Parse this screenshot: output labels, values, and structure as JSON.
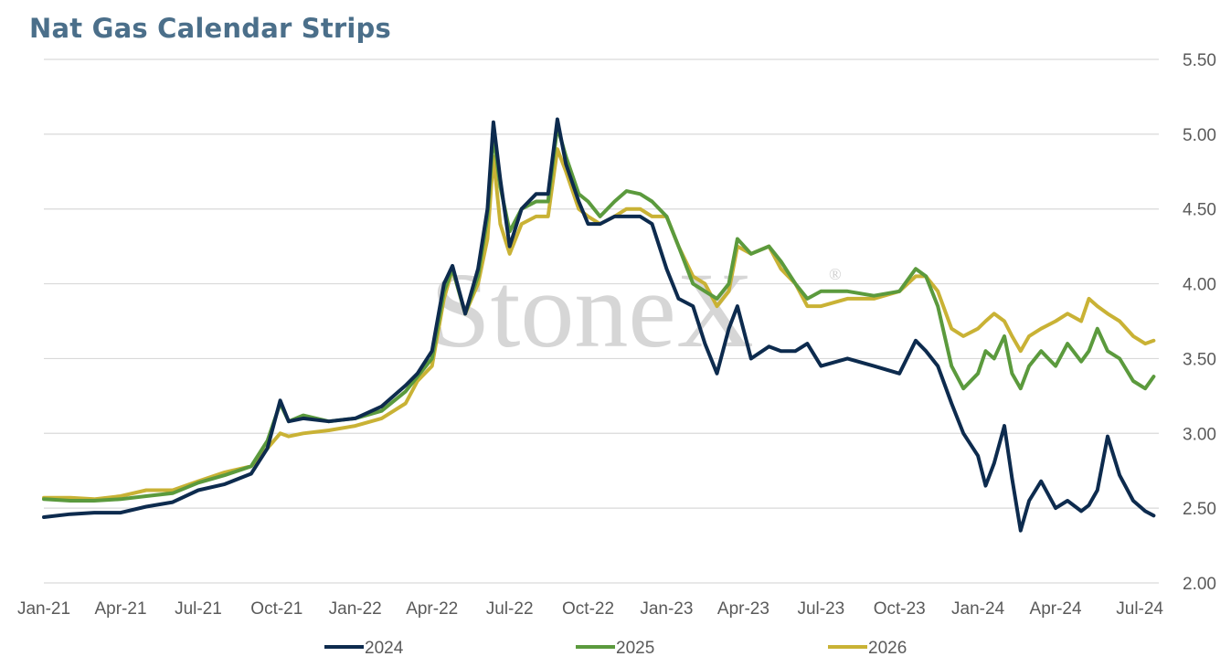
{
  "chart_data": {
    "type": "line",
    "title": "Nat Gas Calendar Strips",
    "watermark": "StoneX",
    "watermark_mark": "®",
    "xlabel": "",
    "ylabel": "",
    "x_ticks": [
      "Jan-21",
      "Apr-21",
      "Jul-21",
      "Oct-21",
      "Jan-22",
      "Apr-22",
      "Jul-22",
      "Oct-22",
      "Jan-23",
      "Apr-23",
      "Jul-23",
      "Oct-23",
      "Jan-24",
      "Apr-24",
      "Jul-24"
    ],
    "x_range": [
      "2021-01-01",
      "2024-07-31"
    ],
    "y_ticks": [
      "2.00",
      "2.50",
      "3.00",
      "3.50",
      "4.00",
      "4.50",
      "5.00",
      "5.50"
    ],
    "ylim": [
      2.0,
      5.5
    ],
    "y_axis_side": "right",
    "grid": "horizontal",
    "legend_position": "bottom",
    "series": [
      {
        "name": "2024",
        "color": "#0d2b4e",
        "x": [
          "2021-01-01",
          "2021-02-01",
          "2021-03-01",
          "2021-04-01",
          "2021-05-01",
          "2021-06-01",
          "2021-07-01",
          "2021-08-01",
          "2021-09-01",
          "2021-09-20",
          "2021-10-05",
          "2021-10-15",
          "2021-11-01",
          "2021-12-01",
          "2022-01-01",
          "2022-02-01",
          "2022-03-01",
          "2022-03-15",
          "2022-04-01",
          "2022-04-15",
          "2022-04-25",
          "2022-05-10",
          "2022-05-25",
          "2022-06-05",
          "2022-06-12",
          "2022-06-20",
          "2022-07-01",
          "2022-07-15",
          "2022-08-01",
          "2022-08-15",
          "2022-08-26",
          "2022-09-05",
          "2022-09-20",
          "2022-10-01",
          "2022-10-15",
          "2022-11-01",
          "2022-11-15",
          "2022-12-01",
          "2022-12-15",
          "2023-01-01",
          "2023-01-15",
          "2023-02-01",
          "2023-02-15",
          "2023-03-01",
          "2023-03-15",
          "2023-03-25",
          "2023-04-10",
          "2023-05-01",
          "2023-05-15",
          "2023-06-01",
          "2023-06-15",
          "2023-07-01",
          "2023-08-01",
          "2023-09-01",
          "2023-10-01",
          "2023-10-20",
          "2023-11-01",
          "2023-11-15",
          "2023-12-01",
          "2023-12-15",
          "2024-01-01",
          "2024-01-10",
          "2024-01-20",
          "2024-02-01",
          "2024-02-10",
          "2024-02-20",
          "2024-03-01",
          "2024-03-15",
          "2024-04-01",
          "2024-04-15",
          "2024-05-01",
          "2024-05-10",
          "2024-05-20",
          "2024-06-01",
          "2024-06-15",
          "2024-07-01",
          "2024-07-15",
          "2024-07-25"
        ],
        "values": [
          2.44,
          2.46,
          2.47,
          2.47,
          2.51,
          2.54,
          2.62,
          2.66,
          2.73,
          2.9,
          3.22,
          3.08,
          3.1,
          3.08,
          3.1,
          3.18,
          3.32,
          3.4,
          3.55,
          4.0,
          4.12,
          3.8,
          4.1,
          4.5,
          5.08,
          4.7,
          4.25,
          4.5,
          4.6,
          4.6,
          5.1,
          4.8,
          4.55,
          4.4,
          4.4,
          4.45,
          4.45,
          4.45,
          4.4,
          4.1,
          3.9,
          3.85,
          3.6,
          3.4,
          3.7,
          3.85,
          3.5,
          3.58,
          3.55,
          3.55,
          3.6,
          3.45,
          3.5,
          3.45,
          3.4,
          3.62,
          3.55,
          3.45,
          3.2,
          3.0,
          2.85,
          2.65,
          2.8,
          3.05,
          2.7,
          2.35,
          2.55,
          2.68,
          2.5,
          2.55,
          2.48,
          2.52,
          2.62,
          2.98,
          2.72,
          2.55,
          2.48,
          2.45
        ]
      },
      {
        "name": "2025",
        "color": "#5b9a3d",
        "x": [
          "2021-01-01",
          "2021-02-01",
          "2021-03-01",
          "2021-04-01",
          "2021-05-01",
          "2021-06-01",
          "2021-07-01",
          "2021-08-01",
          "2021-09-01",
          "2021-09-20",
          "2021-10-05",
          "2021-10-15",
          "2021-11-01",
          "2021-12-01",
          "2022-01-01",
          "2022-02-01",
          "2022-03-01",
          "2022-03-15",
          "2022-04-01",
          "2022-04-15",
          "2022-04-25",
          "2022-05-10",
          "2022-05-25",
          "2022-06-05",
          "2022-06-12",
          "2022-06-20",
          "2022-07-01",
          "2022-07-15",
          "2022-08-01",
          "2022-08-15",
          "2022-08-26",
          "2022-09-05",
          "2022-09-20",
          "2022-10-01",
          "2022-10-15",
          "2022-11-01",
          "2022-11-15",
          "2022-12-01",
          "2022-12-15",
          "2023-01-01",
          "2023-01-15",
          "2023-02-01",
          "2023-02-15",
          "2023-03-01",
          "2023-03-15",
          "2023-03-25",
          "2023-04-10",
          "2023-05-01",
          "2023-05-15",
          "2023-06-01",
          "2023-06-15",
          "2023-07-01",
          "2023-08-01",
          "2023-09-01",
          "2023-10-01",
          "2023-10-20",
          "2023-11-01",
          "2023-11-15",
          "2023-12-01",
          "2023-12-15",
          "2024-01-01",
          "2024-01-10",
          "2024-01-20",
          "2024-02-01",
          "2024-02-10",
          "2024-02-20",
          "2024-03-01",
          "2024-03-15",
          "2024-04-01",
          "2024-04-15",
          "2024-05-01",
          "2024-05-10",
          "2024-05-20",
          "2024-06-01",
          "2024-06-15",
          "2024-07-01",
          "2024-07-15",
          "2024-07-25"
        ],
        "values": [
          2.56,
          2.55,
          2.55,
          2.56,
          2.58,
          2.6,
          2.67,
          2.72,
          2.78,
          2.95,
          3.2,
          3.08,
          3.12,
          3.08,
          3.1,
          3.15,
          3.28,
          3.38,
          3.5,
          3.95,
          4.1,
          3.8,
          4.05,
          4.45,
          5.0,
          4.65,
          4.35,
          4.5,
          4.55,
          4.55,
          5.05,
          4.85,
          4.6,
          4.55,
          4.45,
          4.55,
          4.62,
          4.6,
          4.55,
          4.45,
          4.25,
          4.0,
          3.95,
          3.9,
          4.0,
          4.3,
          4.2,
          4.25,
          4.15,
          4.0,
          3.9,
          3.95,
          3.95,
          3.92,
          3.95,
          4.1,
          4.05,
          3.85,
          3.45,
          3.3,
          3.4,
          3.55,
          3.5,
          3.65,
          3.4,
          3.3,
          3.45,
          3.55,
          3.45,
          3.6,
          3.48,
          3.55,
          3.7,
          3.55,
          3.5,
          3.35,
          3.3,
          3.38
        ]
      },
      {
        "name": "2026",
        "color": "#c9b235",
        "x": [
          "2021-01-01",
          "2021-02-01",
          "2021-03-01",
          "2021-04-01",
          "2021-05-01",
          "2021-06-01",
          "2021-07-01",
          "2021-08-01",
          "2021-09-01",
          "2021-09-20",
          "2021-10-05",
          "2021-10-15",
          "2021-11-01",
          "2021-12-01",
          "2022-01-01",
          "2022-02-01",
          "2022-03-01",
          "2022-03-15",
          "2022-04-01",
          "2022-04-15",
          "2022-04-25",
          "2022-05-10",
          "2022-05-25",
          "2022-06-05",
          "2022-06-12",
          "2022-06-20",
          "2022-07-01",
          "2022-07-15",
          "2022-08-01",
          "2022-08-15",
          "2022-08-26",
          "2022-09-05",
          "2022-09-20",
          "2022-10-01",
          "2022-10-15",
          "2022-11-01",
          "2022-11-15",
          "2022-12-01",
          "2022-12-15",
          "2023-01-01",
          "2023-01-15",
          "2023-02-01",
          "2023-02-15",
          "2023-03-01",
          "2023-03-15",
          "2023-03-25",
          "2023-04-10",
          "2023-05-01",
          "2023-05-15",
          "2023-06-01",
          "2023-06-15",
          "2023-07-01",
          "2023-08-01",
          "2023-09-01",
          "2023-10-01",
          "2023-10-20",
          "2023-11-01",
          "2023-11-15",
          "2023-12-01",
          "2023-12-15",
          "2024-01-01",
          "2024-01-10",
          "2024-01-20",
          "2024-02-01",
          "2024-02-10",
          "2024-02-20",
          "2024-03-01",
          "2024-03-15",
          "2024-04-01",
          "2024-04-15",
          "2024-05-01",
          "2024-05-10",
          "2024-05-20",
          "2024-06-01",
          "2024-06-15",
          "2024-07-01",
          "2024-07-15",
          "2024-07-25"
        ],
        "values": [
          2.57,
          2.57,
          2.56,
          2.58,
          2.62,
          2.62,
          2.68,
          2.74,
          2.78,
          2.9,
          3.0,
          2.98,
          3.0,
          3.02,
          3.05,
          3.1,
          3.2,
          3.35,
          3.45,
          3.9,
          4.1,
          3.8,
          4.0,
          4.3,
          4.85,
          4.4,
          4.2,
          4.4,
          4.45,
          4.45,
          4.9,
          4.75,
          4.5,
          4.45,
          4.4,
          4.45,
          4.5,
          4.5,
          4.45,
          4.45,
          4.25,
          4.05,
          4.0,
          3.85,
          3.95,
          4.25,
          4.2,
          4.25,
          4.1,
          4.0,
          3.85,
          3.85,
          3.9,
          3.9,
          3.95,
          4.05,
          4.05,
          3.95,
          3.7,
          3.65,
          3.7,
          3.75,
          3.8,
          3.75,
          3.65,
          3.55,
          3.65,
          3.7,
          3.75,
          3.8,
          3.75,
          3.9,
          3.85,
          3.8,
          3.75,
          3.65,
          3.6,
          3.62
        ]
      }
    ]
  }
}
